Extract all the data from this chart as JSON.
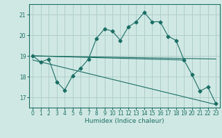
{
  "xlabel": "Humidex (Indice chaleur)",
  "background_color": "#d0e8e4",
  "grid_color": "#b0ceca",
  "line_color": "#1a6e64",
  "xlim": [
    -0.5,
    23.5
  ],
  "ylim": [
    16.5,
    21.5
  ],
  "yticks": [
    17,
    18,
    19,
    20,
    21
  ],
  "xticks": [
    0,
    1,
    2,
    3,
    4,
    5,
    6,
    7,
    8,
    9,
    10,
    11,
    12,
    13,
    14,
    15,
    16,
    17,
    18,
    19,
    20,
    21,
    22,
    23
  ],
  "line1_x": [
    0,
    1,
    2,
    3,
    4,
    5,
    6,
    7,
    8,
    9,
    10,
    11,
    12,
    13,
    14,
    15,
    16,
    17,
    18,
    19,
    20,
    21,
    22,
    23
  ],
  "line1_y": [
    19.0,
    18.7,
    18.85,
    17.75,
    17.35,
    18.05,
    18.4,
    18.85,
    19.85,
    20.3,
    20.2,
    19.75,
    20.4,
    20.65,
    21.1,
    20.65,
    20.65,
    19.95,
    19.75,
    18.8,
    18.1,
    17.3,
    17.5,
    16.7
  ],
  "line2_x": [
    0,
    19
  ],
  "line2_y": [
    19.0,
    18.8
  ],
  "line3_x": [
    0,
    23
  ],
  "line3_y": [
    18.8,
    16.65
  ],
  "line4_x": [
    0,
    23
  ],
  "line4_y": [
    19.0,
    18.85
  ]
}
